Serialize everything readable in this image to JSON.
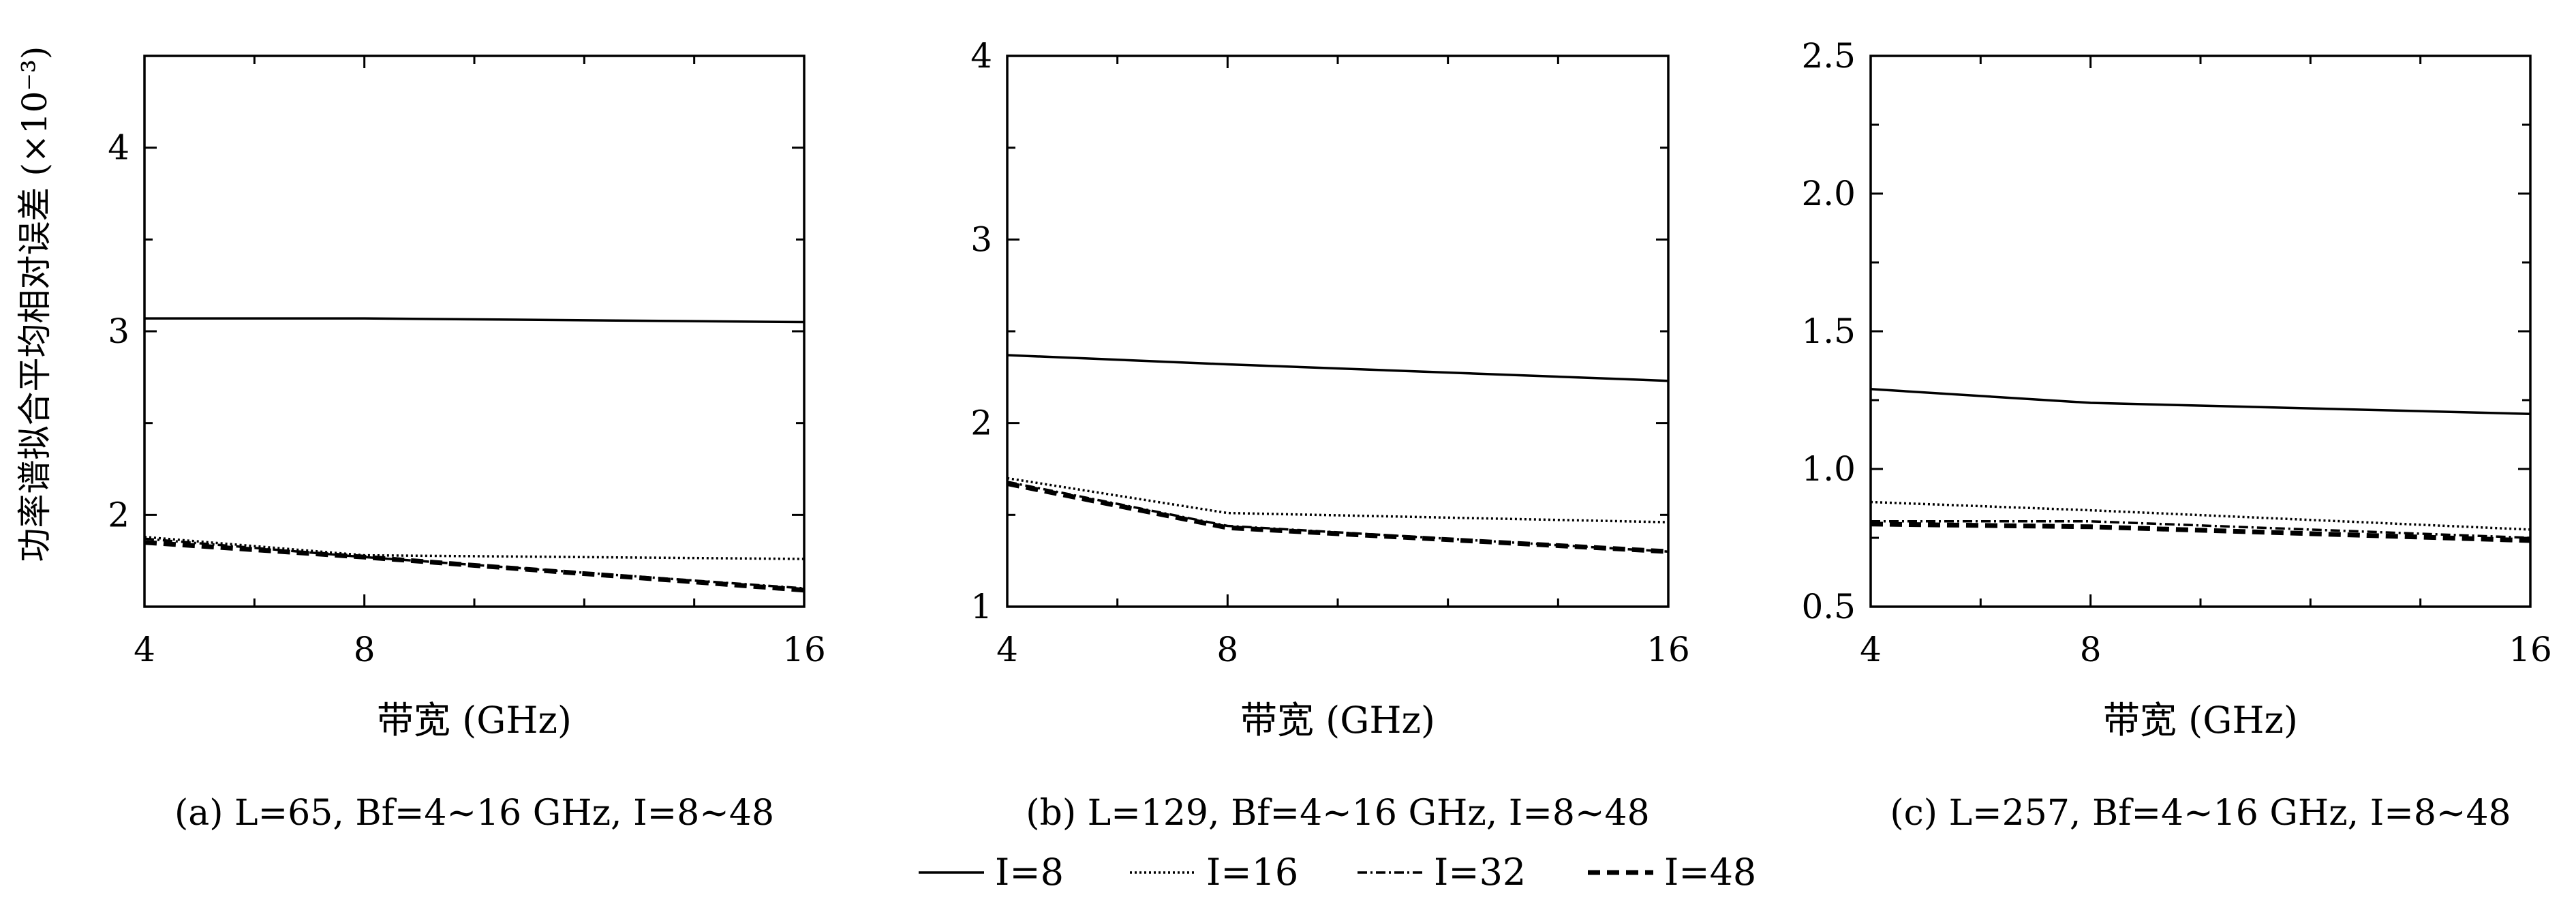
{
  "chart_data": [
    {
      "type": "line",
      "caption": "(a) L=65, Bf=4~16 GHz, I=8~48",
      "xlabel": "带宽 (GHz)",
      "ylabel": "功率谱拟合平均相对误差 (×10⁻³)",
      "xlim": [
        4,
        16
      ],
      "ylim": [
        1.5,
        4.5
      ],
      "xticks": [
        4,
        8,
        16
      ],
      "xtick_labels": [
        "4",
        "8",
        "16"
      ],
      "yticks": [
        2,
        3,
        4
      ],
      "ytick_labels": [
        "2",
        "3",
        "4"
      ],
      "x": [
        4,
        8,
        16
      ],
      "series": [
        {
          "name": "I=8",
          "values": [
            3.07,
            3.07,
            3.05
          ]
        },
        {
          "name": "I=16",
          "values": [
            1.88,
            1.78,
            1.76
          ]
        },
        {
          "name": "I=32",
          "values": [
            1.87,
            1.77,
            1.6
          ]
        },
        {
          "name": "I=48",
          "values": [
            1.85,
            1.77,
            1.59
          ]
        }
      ]
    },
    {
      "type": "line",
      "caption": "(b) L=129, Bf=4~16 GHz, I=8~48",
      "xlabel": "带宽 (GHz)",
      "xlim": [
        4,
        16
      ],
      "ylim": [
        1,
        4
      ],
      "xticks": [
        4,
        8,
        16
      ],
      "xtick_labels": [
        "4",
        "8",
        "16"
      ],
      "yticks": [
        1,
        2,
        3,
        4
      ],
      "ytick_labels": [
        "1",
        "2",
        "3",
        "4"
      ],
      "x": [
        4,
        8,
        16
      ],
      "series": [
        {
          "name": "I=8",
          "values": [
            2.37,
            2.32,
            2.23
          ]
        },
        {
          "name": "I=16",
          "values": [
            1.7,
            1.51,
            1.46
          ]
        },
        {
          "name": "I=32",
          "values": [
            1.68,
            1.44,
            1.3
          ]
        },
        {
          "name": "I=48",
          "values": [
            1.67,
            1.43,
            1.3
          ]
        }
      ]
    },
    {
      "type": "line",
      "caption": "(c) L=257, Bf=4~16 GHz, I=8~48",
      "xlabel": "带宽 (GHz)",
      "xlim": [
        4,
        16
      ],
      "ylim": [
        0.5,
        2.5
      ],
      "xticks": [
        4,
        8,
        16
      ],
      "xtick_labels": [
        "4",
        "8",
        "16"
      ],
      "yticks": [
        0.5,
        1.0,
        1.5,
        2.0,
        2.5
      ],
      "ytick_labels": [
        "0.5",
        "1.0",
        "1.5",
        "2.0",
        "2.5"
      ],
      "x": [
        4,
        8,
        16
      ],
      "series": [
        {
          "name": "I=8",
          "values": [
            1.29,
            1.24,
            1.2
          ]
        },
        {
          "name": "I=16",
          "values": [
            0.88,
            0.85,
            0.78
          ]
        },
        {
          "name": "I=32",
          "values": [
            0.81,
            0.81,
            0.75
          ]
        },
        {
          "name": "I=48",
          "values": [
            0.8,
            0.79,
            0.74
          ]
        }
      ]
    }
  ],
  "legend": {
    "placement": "bottom-center",
    "items": [
      {
        "label": "I=8",
        "style": "solid"
      },
      {
        "label": "I=16",
        "style": "dotted"
      },
      {
        "label": "I=32",
        "style": "dash-dot"
      },
      {
        "label": "I=48",
        "style": "dashed"
      }
    ]
  }
}
